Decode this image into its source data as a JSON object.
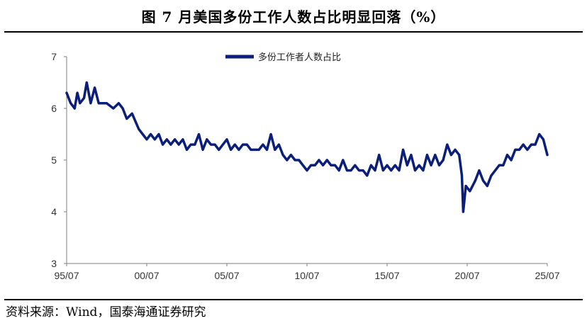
{
  "header": {
    "title": "图   7 月美国多份工作人数占比明显回落（%）"
  },
  "footer": {
    "source": "资料来源：Wind，国泰海通证券研究"
  },
  "colors": {
    "series": "#0b1f7a",
    "axis": "#7f7f7f"
  },
  "chart_data": {
    "type": "line",
    "title": "",
    "xlabel": "",
    "ylabel": "",
    "ylim": [
      3,
      7
    ],
    "yticks": [
      "3",
      "4",
      "5",
      "6",
      "7"
    ],
    "xticks": [
      "95/07",
      "00/07",
      "05/07",
      "10/07",
      "15/07",
      "20/07",
      "25/07"
    ],
    "xrange": [
      "1995-07",
      "2025-07"
    ],
    "grid": false,
    "legend": "top-center",
    "series": [
      {
        "name": "多份工作者人数占比",
        "points": [
          [
            "1995-07",
            6.3
          ],
          [
            "1995-10",
            6.1
          ],
          [
            "1996-01",
            6.0
          ],
          [
            "1996-03",
            6.3
          ],
          [
            "1996-05",
            6.1
          ],
          [
            "1996-08",
            6.2
          ],
          [
            "1996-10",
            6.5
          ],
          [
            "1997-01",
            6.1
          ],
          [
            "1997-04",
            6.4
          ],
          [
            "1997-07",
            6.1
          ],
          [
            "1998-01",
            6.1
          ],
          [
            "1998-06",
            6.0
          ],
          [
            "1998-10",
            6.1
          ],
          [
            "1999-01",
            6.0
          ],
          [
            "1999-04",
            5.8
          ],
          [
            "1999-08",
            5.9
          ],
          [
            "2000-01",
            5.6
          ],
          [
            "2000-04",
            5.5
          ],
          [
            "2000-07",
            5.4
          ],
          [
            "2000-10",
            5.5
          ],
          [
            "2001-01",
            5.4
          ],
          [
            "2001-04",
            5.5
          ],
          [
            "2001-07",
            5.3
          ],
          [
            "2001-10",
            5.4
          ],
          [
            "2002-01",
            5.3
          ],
          [
            "2002-04",
            5.4
          ],
          [
            "2002-07",
            5.3
          ],
          [
            "2002-10",
            5.4
          ],
          [
            "2003-01",
            5.2
          ],
          [
            "2003-04",
            5.3
          ],
          [
            "2003-07",
            5.3
          ],
          [
            "2003-10",
            5.5
          ],
          [
            "2004-01",
            5.2
          ],
          [
            "2004-04",
            5.4
          ],
          [
            "2004-07",
            5.3
          ],
          [
            "2004-10",
            5.3
          ],
          [
            "2005-01",
            5.2
          ],
          [
            "2005-04",
            5.3
          ],
          [
            "2005-07",
            5.4
          ],
          [
            "2005-10",
            5.2
          ],
          [
            "2006-01",
            5.3
          ],
          [
            "2006-04",
            5.2
          ],
          [
            "2006-07",
            5.3
          ],
          [
            "2006-10",
            5.3
          ],
          [
            "2007-01",
            5.2
          ],
          [
            "2007-04",
            5.2
          ],
          [
            "2007-07",
            5.2
          ],
          [
            "2007-10",
            5.3
          ],
          [
            "2008-01",
            5.2
          ],
          [
            "2008-04",
            5.5
          ],
          [
            "2008-07",
            5.2
          ],
          [
            "2008-10",
            5.3
          ],
          [
            "2009-01",
            5.1
          ],
          [
            "2009-04",
            5.0
          ],
          [
            "2009-07",
            5.1
          ],
          [
            "2009-10",
            5.0
          ],
          [
            "2010-01",
            5.0
          ],
          [
            "2010-04",
            4.9
          ],
          [
            "2010-07",
            4.8
          ],
          [
            "2010-10",
            4.9
          ],
          [
            "2011-01",
            4.9
          ],
          [
            "2011-04",
            5.0
          ],
          [
            "2011-07",
            4.9
          ],
          [
            "2011-10",
            5.0
          ],
          [
            "2012-01",
            4.9
          ],
          [
            "2012-04",
            4.9
          ],
          [
            "2012-07",
            4.8
          ],
          [
            "2012-10",
            5.0
          ],
          [
            "2013-01",
            4.8
          ],
          [
            "2013-04",
            4.8
          ],
          [
            "2013-07",
            4.9
          ],
          [
            "2013-10",
            4.8
          ],
          [
            "2014-01",
            4.8
          ],
          [
            "2014-04",
            4.7
          ],
          [
            "2014-07",
            4.9
          ],
          [
            "2014-10",
            4.8
          ],
          [
            "2015-01",
            5.1
          ],
          [
            "2015-04",
            4.8
          ],
          [
            "2015-07",
            4.9
          ],
          [
            "2015-10",
            4.8
          ],
          [
            "2016-01",
            4.9
          ],
          [
            "2016-04",
            4.8
          ],
          [
            "2016-07",
            5.2
          ],
          [
            "2016-10",
            4.9
          ],
          [
            "2017-01",
            5.1
          ],
          [
            "2017-04",
            4.8
          ],
          [
            "2017-07",
            4.9
          ],
          [
            "2017-10",
            4.8
          ],
          [
            "2018-01",
            5.1
          ],
          [
            "2018-04",
            4.9
          ],
          [
            "2018-07",
            5.1
          ],
          [
            "2018-10",
            4.9
          ],
          [
            "2019-01",
            5.0
          ],
          [
            "2019-04",
            5.3
          ],
          [
            "2019-07",
            5.1
          ],
          [
            "2019-10",
            5.2
          ],
          [
            "2020-01",
            5.1
          ],
          [
            "2020-03",
            4.7
          ],
          [
            "2020-04",
            4.0
          ],
          [
            "2020-06",
            4.5
          ],
          [
            "2020-09",
            4.4
          ],
          [
            "2021-01",
            4.6
          ],
          [
            "2021-04",
            4.8
          ],
          [
            "2021-07",
            4.6
          ],
          [
            "2021-10",
            4.5
          ],
          [
            "2022-01",
            4.7
          ],
          [
            "2022-04",
            4.8
          ],
          [
            "2022-07",
            4.9
          ],
          [
            "2022-10",
            4.9
          ],
          [
            "2023-01",
            5.1
          ],
          [
            "2023-04",
            5.0
          ],
          [
            "2023-07",
            5.2
          ],
          [
            "2023-10",
            5.2
          ],
          [
            "2024-01",
            5.3
          ],
          [
            "2024-04",
            5.2
          ],
          [
            "2024-07",
            5.3
          ],
          [
            "2024-10",
            5.3
          ],
          [
            "2025-01",
            5.5
          ],
          [
            "2025-04",
            5.4
          ],
          [
            "2025-07",
            5.1
          ]
        ]
      }
    ]
  }
}
